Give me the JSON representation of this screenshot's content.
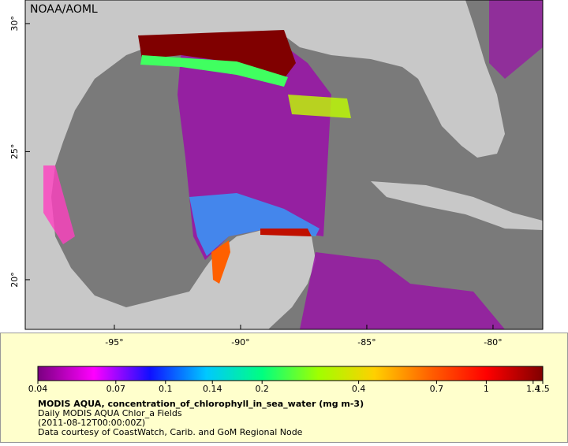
{
  "map": {
    "title": "NOAA/AOML",
    "xlim": [
      -98.53,
      -78.03
    ],
    "ylim": [
      18.06,
      30.92
    ],
    "xticks": [
      {
        "value": -95,
        "label": "-95°"
      },
      {
        "value": -90,
        "label": "-90°"
      },
      {
        "value": -85,
        "label": "-85°"
      },
      {
        "value": -80,
        "label": "-80°"
      }
    ],
    "yticks": [
      {
        "value": 20,
        "label": "20°"
      },
      {
        "value": 25,
        "label": "25°"
      },
      {
        "value": 30,
        "label": "30°"
      }
    ]
  },
  "colorbar": {
    "scale": "log",
    "lim": [
      0.04,
      1.5
    ],
    "ticks": [
      0.04,
      0.07,
      0.1,
      0.14,
      0.2,
      0.4,
      0.7,
      1,
      1.4,
      1.5
    ],
    "colors": [
      "#7a0080",
      "#ff00ff",
      "#1010ff",
      "#00c8ff",
      "#00ff80",
      "#a0ff00",
      "#ffd000",
      "#ff6000",
      "#ff0000",
      "#800000"
    ]
  },
  "caption": {
    "lines": [
      "MODIS AQUA, concentration_of_chlorophyll_in_sea_water (mg m-3)",
      "Daily MODIS AQUA Chlor_a Fields",
      "(2011-08-12T00:00:00Z)",
      "Data courtesy of CoastWatch, Carib. and GoM Regional Node"
    ]
  }
}
